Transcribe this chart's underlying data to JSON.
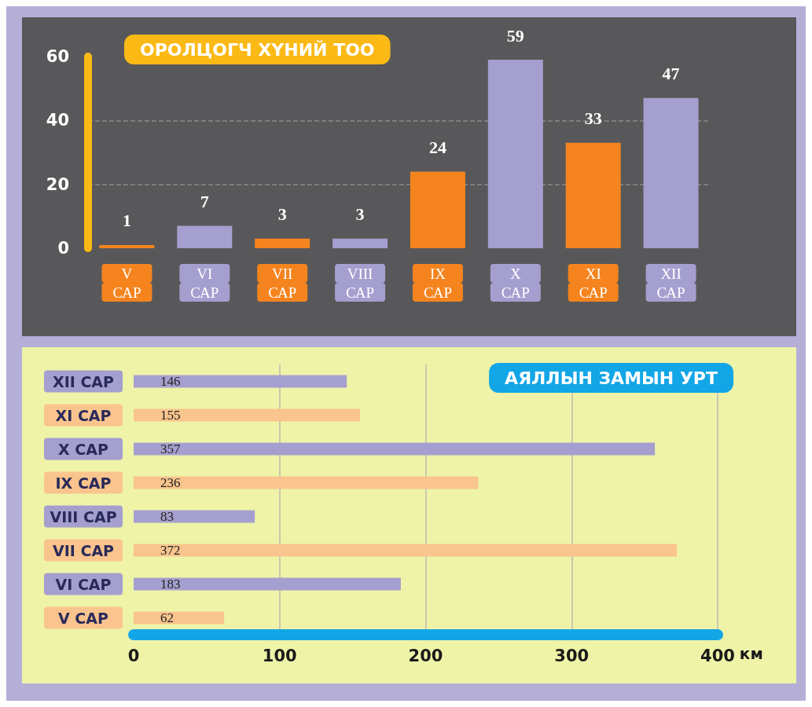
{
  "chart_data": [
    {
      "type": "bar",
      "title": "ОРОЛЦОГЧ ХҮНИЙ ТОО",
      "categories": [
        "V САР",
        "VI САР",
        "VII САР",
        "VIII САР",
        "IX САР",
        "X САР",
        "XI САР",
        "XII САР"
      ],
      "values": [
        1,
        7,
        3,
        3,
        24,
        59,
        33,
        47
      ],
      "colors": [
        "#f5841f",
        "#a59fcf",
        "#f5841f",
        "#a59fcf",
        "#f5841f",
        "#a59fcf",
        "#f5841f",
        "#a59fcf"
      ],
      "ylim": [
        0,
        60
      ],
      "yticks": [
        0,
        20,
        40,
        60
      ],
      "grid": "y",
      "data_labels": true
    },
    {
      "type": "bar",
      "orientation": "horizontal",
      "title": "АЯЛЛЫН ЗАМЫН УРТ",
      "xlabel": "км",
      "categories": [
        "XII САР",
        "XI САР",
        "X САР",
        "IX САР",
        "VIII САР",
        "VII САР",
        "VI САР",
        "V САР"
      ],
      "values": [
        146,
        155,
        357,
        236,
        83,
        372,
        183,
        62
      ],
      "colors": [
        "#a59fcf",
        "#f9c48d",
        "#a59fcf",
        "#f9c48d",
        "#a59fcf",
        "#f9c48d",
        "#a59fcf",
        "#f9c48d"
      ],
      "xlim": [
        0,
        400
      ],
      "xticks": [
        0,
        100,
        200,
        300,
        400
      ],
      "grid": "x",
      "data_labels": true
    }
  ]
}
